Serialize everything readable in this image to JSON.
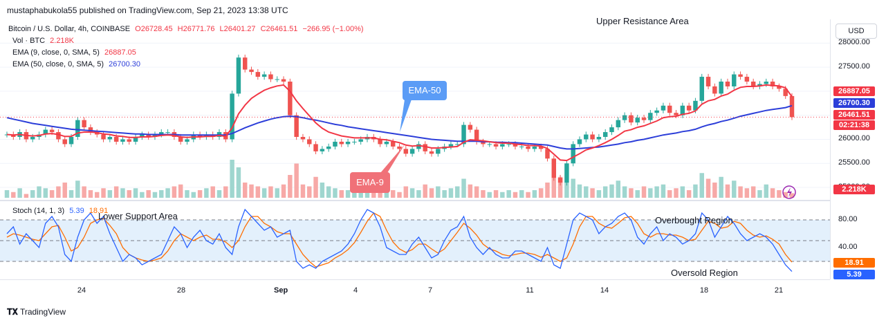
{
  "publisher": "mustaphabukola55 published on TradingView.com, Sep 21, 2023 13:38 UTC",
  "legend": {
    "symbol": "Bitcoin / U.S. Dollar, 4h, COINBASE",
    "open": "O26728.45",
    "high": "H26771.76",
    "low": "L26401.27",
    "close": "C26461.51",
    "change": "−266.95 (−1.00%)",
    "vol_label": "Vol · BTC",
    "vol_value": "2.218K",
    "ema9_label": "EMA (9, close, 0, SMA, 5)",
    "ema9_value": "26887.05",
    "ema50_label": "EMA (50, close, 0, SMA, 5)",
    "ema50_value": "26700.30",
    "stoch_label": "Stoch (14, 1, 3)",
    "stoch_k": "5.39",
    "stoch_d": "18.91"
  },
  "currency_button": "USD",
  "annotations": {
    "upper_resistance": "Upper Resistance Area",
    "lower_support": "Lower Support Area",
    "overbought": "Overbought Region",
    "oversold": "Oversold Region",
    "ema50_callout": "EMA-50",
    "ema9_callout": "EMA-9"
  },
  "price_tags": {
    "ema9": "26887.05",
    "ema50": "26700.30",
    "last": "26461.51",
    "countdown": "02:21:38",
    "volume": "2.218K"
  },
  "footer": "TradingView",
  "colors": {
    "up": "#26a69a",
    "down": "#ef5350",
    "ema9": "#f23645",
    "ema50": "#2c3ed9",
    "stoch_k": "#2962ff",
    "stoch_d": "#ff6d00",
    "band": "#e3f0fc",
    "callout_blue": "#5b9cf6",
    "callout_red": "#f07178"
  },
  "chart_data": {
    "type": "candlestick",
    "title": "Bitcoin / U.S. Dollar, 4h, COINBASE",
    "y_ticks": [
      28000,
      27500,
      27000,
      26500,
      26000,
      25500,
      25000
    ],
    "y_tick_labels": [
      "28000.00",
      "27500.00",
      "27000.00",
      "26500.00",
      "26000.00",
      "25500.00",
      "25000.00"
    ],
    "ylim": [
      24900,
      28350
    ],
    "x_tick_labels": [
      "24",
      "28",
      "Sep",
      "4",
      "7",
      "11",
      "14",
      "18",
      "21"
    ],
    "close_path": [
      26100,
      26050,
      26150,
      26000,
      26050,
      26100,
      26200,
      26150,
      26000,
      25900,
      26050,
      26400,
      26250,
      26150,
      26100,
      26000,
      26050,
      25950,
      26000,
      25950,
      26050,
      26100,
      26050,
      26100,
      26150,
      26150,
      26050,
      25950,
      26000,
      26100,
      26050,
      26100,
      26050,
      26150,
      26000,
      26950,
      27700,
      27450,
      27400,
      27300,
      27350,
      27250,
      27250,
      27200,
      26500,
      26050,
      26000,
      25900,
      25750,
      25800,
      25850,
      25950,
      25900,
      25950,
      25950,
      26000,
      26050,
      26000,
      25900,
      25950,
      25850,
      25800,
      25700,
      25800,
      25900,
      25750,
      25700,
      25800,
      25850,
      25900,
      25900,
      26300,
      26200,
      25950,
      25900,
      25900,
      25850,
      25900,
      25900,
      25850,
      25850,
      25800,
      25850,
      25800,
      25600,
      25200,
      25100,
      25500,
      25900,
      26000,
      26100,
      26000,
      26050,
      26150,
      26250,
      26400,
      26500,
      26350,
      26450,
      26400,
      26550,
      26600,
      26700,
      26550,
      26500,
      26700,
      26600,
      26800,
      27300,
      27100,
      26950,
      27200,
      27100,
      27350,
      27300,
      27200,
      27100,
      27150,
      27200,
      27100,
      27050,
      26900,
      26461
    ],
    "ema9_path": [
      26100,
      26090,
      26100,
      26080,
      26070,
      26080,
      26110,
      26120,
      26100,
      26060,
      26060,
      26130,
      26150,
      26150,
      26140,
      26110,
      26100,
      26070,
      26060,
      26040,
      26040,
      26050,
      26050,
      26060,
      26080,
      26090,
      26080,
      26050,
      26040,
      26050,
      26050,
      26060,
      26060,
      26080,
      26060,
      26240,
      26530,
      26710,
      26850,
      26940,
      27020,
      27070,
      27110,
      27130,
      27000,
      26800,
      26640,
      26490,
      26340,
      26230,
      26150,
      26110,
      26070,
      26050,
      26030,
      26030,
      26030,
      26030,
      26000,
      25990,
      25960,
      25930,
      25880,
      25860,
      25870,
      25850,
      25820,
      25820,
      25830,
      25840,
      25850,
      25940,
      25990,
      25980,
      25970,
      25950,
      25930,
      25920,
      25920,
      25900,
      25890,
      25870,
      25870,
      25860,
      25810,
      25690,
      25570,
      25560,
      25630,
      25700,
      25780,
      25820,
      25870,
      25930,
      26000,
      26080,
      26170,
      26200,
      26250,
      26280,
      26330,
      26380,
      26450,
      26470,
      26480,
      26520,
      26540,
      26590,
      26730,
      26800,
      26830,
      26900,
      26940,
      27020,
      27080,
      27100,
      27100,
      27110,
      27130,
      27120,
      27110,
      27070,
      26887
    ],
    "ema50_path": [
      26450,
      26420,
      26390,
      26360,
      26330,
      26310,
      26290,
      26270,
      26250,
      26230,
      26210,
      26200,
      26190,
      26180,
      26170,
      26160,
      26150,
      26140,
      26130,
      26120,
      26110,
      26110,
      26100,
      26100,
      26100,
      26100,
      26100,
      26090,
      26090,
      26090,
      26090,
      26090,
      26090,
      26090,
      26090,
      26120,
      26180,
      26240,
      26290,
      26340,
      26380,
      26420,
      26450,
      26470,
      26480,
      26470,
      26450,
      26420,
      26400,
      26370,
      26340,
      26310,
      26290,
      26260,
      26240,
      26220,
      26200,
      26180,
      26160,
      26140,
      26120,
      26100,
      26080,
      26060,
      26040,
      26020,
      26000,
      25990,
      25980,
      25970,
      25960,
      25960,
      25960,
      25960,
      25950,
      25950,
      25940,
      25940,
      25930,
      25930,
      25920,
      25910,
      25900,
      25890,
      25880,
      25850,
      25820,
      25800,
      25800,
      25810,
      25820,
      25830,
      25840,
      25860,
      25880,
      25900,
      25930,
      25950,
      25980,
      26000,
      26030,
      26060,
      26090,
      26110,
      26130,
      26160,
      26180,
      26210,
      26260,
      26300,
      26330,
      26370,
      26400,
      26440,
      26480,
      26510,
      26540,
      26570,
      26600,
      26620,
      26640,
      26660,
      26700
    ],
    "volume_path": [
      0.2,
      0.15,
      0.25,
      0.1,
      0.2,
      0.3,
      0.25,
      0.2,
      0.3,
      0.4,
      0.2,
      0.45,
      0.3,
      0.2,
      0.15,
      0.25,
      0.2,
      0.3,
      0.25,
      0.2,
      0.25,
      0.15,
      0.2,
      0.15,
      0.2,
      0.25,
      0.3,
      0.35,
      0.2,
      0.15,
      0.2,
      0.25,
      0.3,
      0.2,
      0.3,
      1.0,
      0.8,
      0.4,
      0.35,
      0.3,
      0.25,
      0.3,
      0.25,
      0.35,
      0.6,
      0.9,
      0.35,
      0.3,
      0.55,
      0.4,
      0.3,
      0.25,
      0.2,
      0.2,
      0.15,
      0.25,
      0.2,
      0.15,
      0.2,
      0.25,
      0.2,
      0.15,
      0.3,
      0.25,
      0.2,
      0.35,
      0.25,
      0.3,
      0.2,
      0.25,
      0.3,
      0.5,
      0.35,
      0.3,
      0.2,
      0.15,
      0.2,
      0.15,
      0.2,
      0.15,
      0.2,
      0.15,
      0.2,
      0.25,
      0.4,
      0.75,
      0.55,
      0.4,
      0.5,
      0.35,
      0.3,
      0.25,
      0.2,
      0.3,
      0.35,
      0.45,
      0.3,
      0.25,
      0.2,
      0.3,
      0.25,
      0.3,
      0.35,
      0.2,
      0.25,
      0.3,
      0.2,
      0.35,
      0.65,
      0.5,
      0.4,
      0.55,
      0.35,
      0.45,
      0.3,
      0.25,
      0.3,
      0.2,
      0.35,
      0.25,
      0.2,
      0.15,
      0.12
    ],
    "stoch_ylim": [
      0,
      100
    ],
    "stoch_ticks": [
      80,
      40
    ],
    "stoch_tick_labels": [
      "80.00",
      "40.00"
    ],
    "stoch_band": [
      20,
      80
    ],
    "stoch_k_path": [
      60,
      70,
      45,
      60,
      50,
      40,
      75,
      85,
      70,
      30,
      20,
      55,
      80,
      90,
      75,
      85,
      60,
      40,
      20,
      30,
      25,
      15,
      20,
      25,
      30,
      50,
      70,
      60,
      40,
      55,
      65,
      50,
      45,
      60,
      40,
      30,
      70,
      95,
      85,
      75,
      65,
      70,
      55,
      60,
      65,
      20,
      10,
      15,
      10,
      20,
      25,
      30,
      35,
      45,
      60,
      80,
      95,
      90,
      70,
      40,
      35,
      30,
      30,
      45,
      55,
      40,
      25,
      30,
      50,
      65,
      70,
      85,
      55,
      40,
      30,
      40,
      30,
      25,
      25,
      35,
      35,
      30,
      25,
      20,
      40,
      15,
      10,
      45,
      80,
      90,
      85,
      80,
      60,
      70,
      75,
      85,
      90,
      80,
      55,
      45,
      60,
      70,
      50,
      60,
      55,
      45,
      50,
      60,
      90,
      80,
      55,
      70,
      85,
      75,
      60,
      50,
      55,
      60,
      55,
      45,
      30,
      15,
      5.39
    ],
    "stoch_d_path": [
      55,
      60,
      58,
      55,
      52,
      50,
      60,
      70,
      72,
      55,
      35,
      40,
      55,
      75,
      80,
      82,
      72,
      60,
      40,
      30,
      25,
      22,
      20,
      22,
      25,
      35,
      50,
      60,
      55,
      50,
      55,
      58,
      52,
      52,
      48,
      40,
      50,
      70,
      85,
      85,
      75,
      70,
      63,
      60,
      60,
      45,
      30,
      20,
      12,
      15,
      18,
      25,
      30,
      37,
      47,
      62,
      78,
      90,
      85,
      65,
      48,
      38,
      33,
      37,
      45,
      45,
      38,
      32,
      38,
      50,
      62,
      75,
      68,
      58,
      45,
      38,
      35,
      30,
      28,
      30,
      32,
      32,
      30,
      26,
      30,
      25,
      20,
      25,
      45,
      70,
      85,
      85,
      75,
      70,
      68,
      75,
      83,
      85,
      75,
      60,
      55,
      60,
      60,
      58,
      58,
      55,
      50,
      52,
      65,
      78,
      75,
      68,
      70,
      78,
      75,
      65,
      58,
      55,
      57,
      52,
      45,
      30,
      18.91
    ]
  }
}
